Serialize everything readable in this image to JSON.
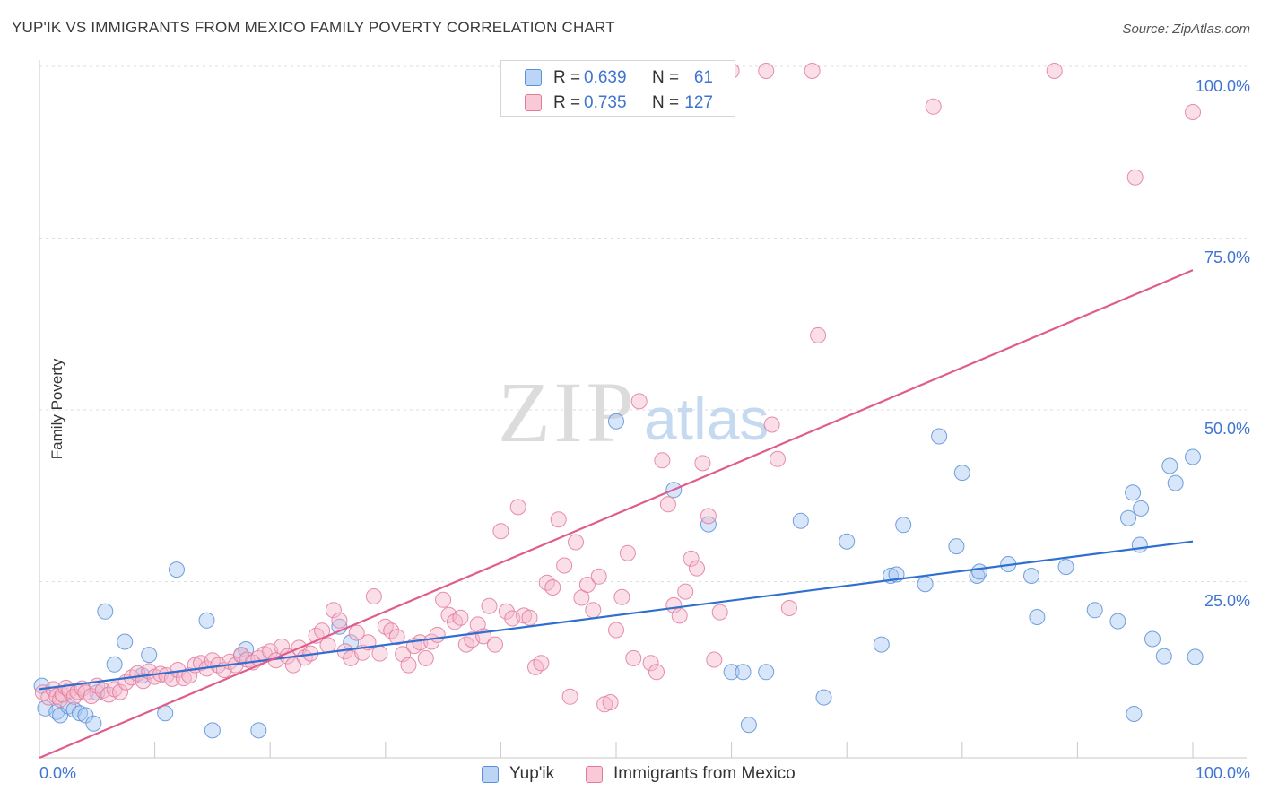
{
  "header": {
    "title": "YUP'IK VS IMMIGRANTS FROM MEXICO FAMILY POVERTY CORRELATION CHART",
    "source": "Source: ZipAtlas.com"
  },
  "watermark": {
    "zip": "ZIP",
    "atlas": "atlas"
  },
  "legend_top": [
    {
      "r_label": "R =",
      "r_value": "0.639",
      "n_label": "N =",
      "n_value": "61",
      "color": "#a9c8f2"
    },
    {
      "r_label": "R =",
      "r_value": "0.735",
      "n_label": "N =",
      "n_value": "127",
      "color": "#f5b8cb"
    }
  ],
  "legend_bottom": [
    "Yup'ik",
    "Immigrants from Mexico"
  ],
  "axes": {
    "ylabel": "Family Poverty",
    "y_ticks": [
      "100.0%",
      "75.0%",
      "50.0%",
      "25.0%"
    ],
    "x_ticks": [
      "0.0%",
      "100.0%"
    ]
  },
  "chart_data": {
    "type": "scatter",
    "title": "YUP'IK VS IMMIGRANTS FROM MEXICO FAMILY POVERTY CORRELATION CHART",
    "xlabel": "",
    "ylabel": "Family Poverty",
    "xlim": [
      0,
      100
    ],
    "ylim": [
      0,
      100
    ],
    "grid": true,
    "legend": "bottom",
    "series": [
      {
        "name": "Yup'ik",
        "color": "#a9c8f2",
        "edge_color": "#5b8fd6",
        "line_color": "#2f6fd0",
        "R": 0.639,
        "N": 61,
        "trendline": [
          [
            0,
            10
          ],
          [
            100,
            31.5
          ]
        ],
        "points": [
          [
            0.2,
            10.5
          ],
          [
            0.5,
            7.2
          ],
          [
            1.5,
            6.7
          ],
          [
            1.8,
            6.2
          ],
          [
            2.5,
            7.5
          ],
          [
            3,
            7
          ],
          [
            3.5,
            6.5
          ],
          [
            4,
            6.2
          ],
          [
            4.7,
            5
          ],
          [
            5,
            9.5
          ],
          [
            5.7,
            21.3
          ],
          [
            6.5,
            13.6
          ],
          [
            7.4,
            16.9
          ],
          [
            8.9,
            12
          ],
          [
            9.5,
            15
          ],
          [
            10.9,
            6.5
          ],
          [
            11.9,
            27.4
          ],
          [
            14.5,
            20
          ],
          [
            15,
            4
          ],
          [
            17.5,
            14.9
          ],
          [
            17.9,
            15.8
          ],
          [
            19,
            4
          ],
          [
            26,
            19.1
          ],
          [
            27,
            16.8
          ],
          [
            50,
            49
          ],
          [
            55,
            39
          ],
          [
            58,
            34
          ],
          [
            60,
            12.5
          ],
          [
            61,
            12.5
          ],
          [
            61.5,
            4.8
          ],
          [
            63,
            12.5
          ],
          [
            66,
            34.5
          ],
          [
            68,
            8.8
          ],
          [
            70,
            31.5
          ],
          [
            73,
            16.5
          ],
          [
            73.8,
            26.5
          ],
          [
            74.3,
            26.7
          ],
          [
            74.9,
            33.9
          ],
          [
            76.8,
            25.3
          ],
          [
            78,
            46.8
          ],
          [
            79.5,
            30.8
          ],
          [
            80,
            41.5
          ],
          [
            81.3,
            26.5
          ],
          [
            81.5,
            27.1
          ],
          [
            84,
            28.2
          ],
          [
            86,
            26.5
          ],
          [
            86.5,
            20.5
          ],
          [
            89,
            27.8
          ],
          [
            91.5,
            21.5
          ],
          [
            93.5,
            19.9
          ],
          [
            94.4,
            34.9
          ],
          [
            94.8,
            38.6
          ],
          [
            94.9,
            6.4
          ],
          [
            95.4,
            31
          ],
          [
            95.5,
            36.3
          ],
          [
            96.5,
            17.3
          ],
          [
            97.5,
            14.8
          ],
          [
            98,
            42.5
          ],
          [
            98.5,
            40
          ],
          [
            100,
            43.8
          ],
          [
            100.2,
            14.7
          ]
        ]
      },
      {
        "name": "Immigrants from Mexico",
        "color": "#f5b8cb",
        "edge_color": "#e27a9c",
        "line_color": "#e05c8e",
        "R": 0.735,
        "N": 127,
        "trendline": [
          [
            0,
            0
          ],
          [
            100,
            71
          ]
        ],
        "points": [
          [
            0.3,
            9.5
          ],
          [
            0.8,
            8.8
          ],
          [
            1.2,
            10
          ],
          [
            1.5,
            9
          ],
          [
            1.8,
            8.5
          ],
          [
            2,
            9.2
          ],
          [
            2.3,
            10.2
          ],
          [
            2.6,
            9.8
          ],
          [
            3,
            8.9
          ],
          [
            3.3,
            9.6
          ],
          [
            3.7,
            10.1
          ],
          [
            4,
            9.5
          ],
          [
            4.5,
            9
          ],
          [
            5,
            10.5
          ],
          [
            5.5,
            9.8
          ],
          [
            6,
            9.2
          ],
          [
            6.5,
            10
          ],
          [
            7,
            9.6
          ],
          [
            7.5,
            11
          ],
          [
            8,
            11.7
          ],
          [
            8.5,
            12.3
          ],
          [
            9,
            11.2
          ],
          [
            9.5,
            12.6
          ],
          [
            10,
            11.8
          ],
          [
            10.5,
            12.2
          ],
          [
            11,
            12
          ],
          [
            11.5,
            11.5
          ],
          [
            12,
            12.8
          ],
          [
            12.5,
            11.6
          ],
          [
            13,
            12
          ],
          [
            13.5,
            13.5
          ],
          [
            14,
            13.8
          ],
          [
            14.5,
            13
          ],
          [
            15,
            14.2
          ],
          [
            15.5,
            13.5
          ],
          [
            16,
            12.8
          ],
          [
            16.5,
            14
          ],
          [
            17,
            13.5
          ],
          [
            17.5,
            15
          ],
          [
            18,
            14.3
          ],
          [
            18.5,
            13.9
          ],
          [
            19,
            14.5
          ],
          [
            19.5,
            15.1
          ],
          [
            20,
            15.5
          ],
          [
            20.5,
            14.2
          ],
          [
            21,
            16.2
          ],
          [
            21.5,
            14.8
          ],
          [
            22,
            13.5
          ],
          [
            22.5,
            16
          ],
          [
            23,
            14.6
          ],
          [
            23.5,
            15.2
          ],
          [
            24,
            17.8
          ],
          [
            24.5,
            18.5
          ],
          [
            25,
            16.4
          ],
          [
            25.5,
            21.5
          ],
          [
            26,
            20
          ],
          [
            26.5,
            15.5
          ],
          [
            27,
            14.5
          ],
          [
            27.5,
            18.2
          ],
          [
            28,
            15.3
          ],
          [
            28.5,
            16.8
          ],
          [
            29,
            23.5
          ],
          [
            29.5,
            15.2
          ],
          [
            30,
            19.1
          ],
          [
            30.5,
            18.5
          ],
          [
            31,
            17.6
          ],
          [
            31.5,
            15.1
          ],
          [
            32,
            13.5
          ],
          [
            32.5,
            16.3
          ],
          [
            33,
            16.8
          ],
          [
            33.5,
            14.5
          ],
          [
            34,
            16.9
          ],
          [
            34.5,
            17.9
          ],
          [
            35,
            23
          ],
          [
            35.5,
            20.8
          ],
          [
            36,
            19.8
          ],
          [
            36.5,
            20.4
          ],
          [
            37,
            16.5
          ],
          [
            37.5,
            17.2
          ],
          [
            38,
            19.4
          ],
          [
            38.5,
            17.7
          ],
          [
            39,
            22.1
          ],
          [
            39.5,
            16.5
          ],
          [
            40,
            33
          ],
          [
            40.5,
            21.3
          ],
          [
            41,
            20.3
          ],
          [
            41.5,
            36.5
          ],
          [
            42,
            20.7
          ],
          [
            42.5,
            20.4
          ],
          [
            43,
            13.2
          ],
          [
            43.5,
            13.8
          ],
          [
            44,
            25.5
          ],
          [
            44.5,
            24.8
          ],
          [
            45,
            34.7
          ],
          [
            45.5,
            28
          ],
          [
            46,
            8.9
          ],
          [
            46.5,
            31.4
          ],
          [
            47,
            23.3
          ],
          [
            47.5,
            25.2
          ],
          [
            48,
            21.5
          ],
          [
            48.5,
            26.4
          ],
          [
            49,
            7.8
          ],
          [
            49.5,
            8.1
          ],
          [
            50,
            18.6
          ],
          [
            50.5,
            23.4
          ],
          [
            51,
            29.8
          ],
          [
            51.5,
            14.5
          ],
          [
            52,
            51.9
          ],
          [
            53,
            13.8
          ],
          [
            53.5,
            12.5
          ],
          [
            54,
            43.3
          ],
          [
            54.5,
            36.9
          ],
          [
            55,
            22.2
          ],
          [
            55.5,
            20.7
          ],
          [
            56,
            24.2
          ],
          [
            56.5,
            29
          ],
          [
            57,
            27.6
          ],
          [
            57.5,
            42.9
          ],
          [
            58,
            35.2
          ],
          [
            58.5,
            14.3
          ],
          [
            59,
            21.2
          ],
          [
            60,
            100
          ],
          [
            63,
            100
          ],
          [
            63.5,
            48.5
          ],
          [
            64,
            43.5
          ],
          [
            65,
            21.8
          ],
          [
            67,
            100
          ],
          [
            67.5,
            61.5
          ],
          [
            77.5,
            94.8
          ],
          [
            88,
            100
          ],
          [
            95,
            84.5
          ],
          [
            100,
            94
          ]
        ]
      }
    ]
  }
}
